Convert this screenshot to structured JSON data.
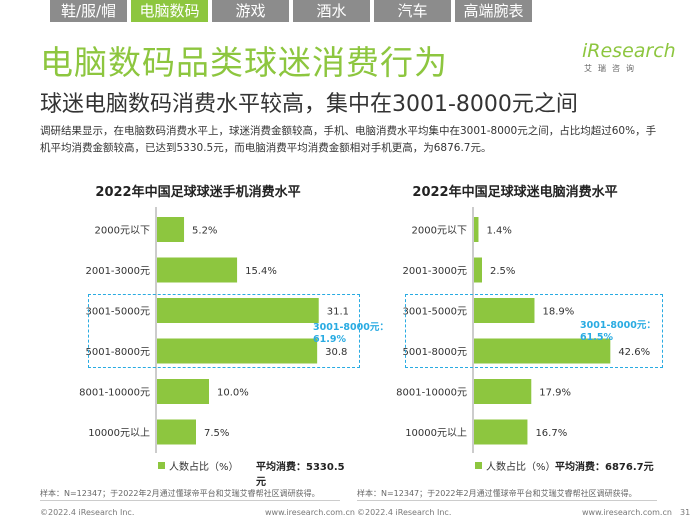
{
  "tabs": [
    "鞋/服/帽",
    "电脑数码",
    "游戏",
    "酒水",
    "汽车",
    "高端腕表"
  ],
  "active_tab": 1,
  "page_title": "电脑数码品类球迷消费行为",
  "logo": {
    "text": "iResearch",
    "sub": "艾瑞咨询"
  },
  "subtitle": "球迷电脑数码消费水平较高，集中在3001-8000元之间",
  "description": "调研结果显示，在电脑数码消费水平上，球迷消费金额较高，手机、电脑消费水平均集中在3001-8000元之间，占比均超过60%，手机平均消费金额较高，已达到5330.5元，而电脑消费平均消费金额相对手机更高，为6876.7元。",
  "colors": {
    "accent": "#8dc63f",
    "callout": "#29abe2",
    "tab_inactive": "#8c8c8c"
  },
  "left": {
    "legend": "人数占比（%）",
    "avg_label": "平均消费：",
    "avg_value": "5330.5元",
    "callout": [
      "3001-8000元：",
      "61.9%"
    ],
    "sample": "样本：N=12347；于2022年2月通过懂球帝平台和艾瑞艾睿帮社区调研获得。",
    "footer_left": "©2022.4 iResearch Inc.",
    "footer_right": "www.iresearch.com.cn"
  },
  "right": {
    "legend": "人数占比（%）",
    "avg_label": "平均消费：",
    "avg_value": "6876.7元",
    "callout": [
      "3001-8000元：",
      "61.5%"
    ],
    "sample": "样本：N=12347；于2022年2月通过懂球帝平台和艾瑞艾睿帮社区调研获得。",
    "footer_left": "©2022.4 iResearch Inc.",
    "footer_right": "www.iresearch.com.cn"
  },
  "page_number": "31",
  "chart_data": [
    {
      "type": "bar",
      "orientation": "horizontal",
      "title": "2022年中国足球球迷手机消费水平",
      "categories": [
        "2000元以下",
        "2001-3000元",
        "3001-5000元",
        "5001-8000元",
        "8001-10000元",
        "10000元以上"
      ],
      "values": [
        5.2,
        15.4,
        31.1,
        30.8,
        10.0,
        7.5
      ],
      "labels": [
        "5.2%",
        "15.4%",
        "31.1%",
        "30.8%",
        "10.0%",
        "7.5%"
      ],
      "xlim": [
        0,
        35
      ],
      "series": [
        {
          "name": "人数占比（%）",
          "values": [
            5.2,
            15.4,
            31.1,
            30.8,
            10.0,
            7.5
          ]
        }
      ]
    },
    {
      "type": "bar",
      "orientation": "horizontal",
      "title": "2022年中国足球球迷电脑消费水平",
      "categories": [
        "2000元以下",
        "2001-3000元",
        "3001-5000元",
        "5001-8000元",
        "8001-10000元",
        "10000元以上"
      ],
      "values": [
        1.4,
        2.5,
        18.9,
        42.6,
        17.9,
        16.7
      ],
      "labels": [
        "1.4%",
        "2.5%",
        "18.9%",
        "42.6%",
        "17.9%",
        "16.7%"
      ],
      "xlim": [
        0,
        48
      ],
      "series": [
        {
          "name": "人数占比（%）",
          "values": [
            1.4,
            2.5,
            18.9,
            42.6,
            17.9,
            16.7
          ]
        }
      ]
    }
  ]
}
